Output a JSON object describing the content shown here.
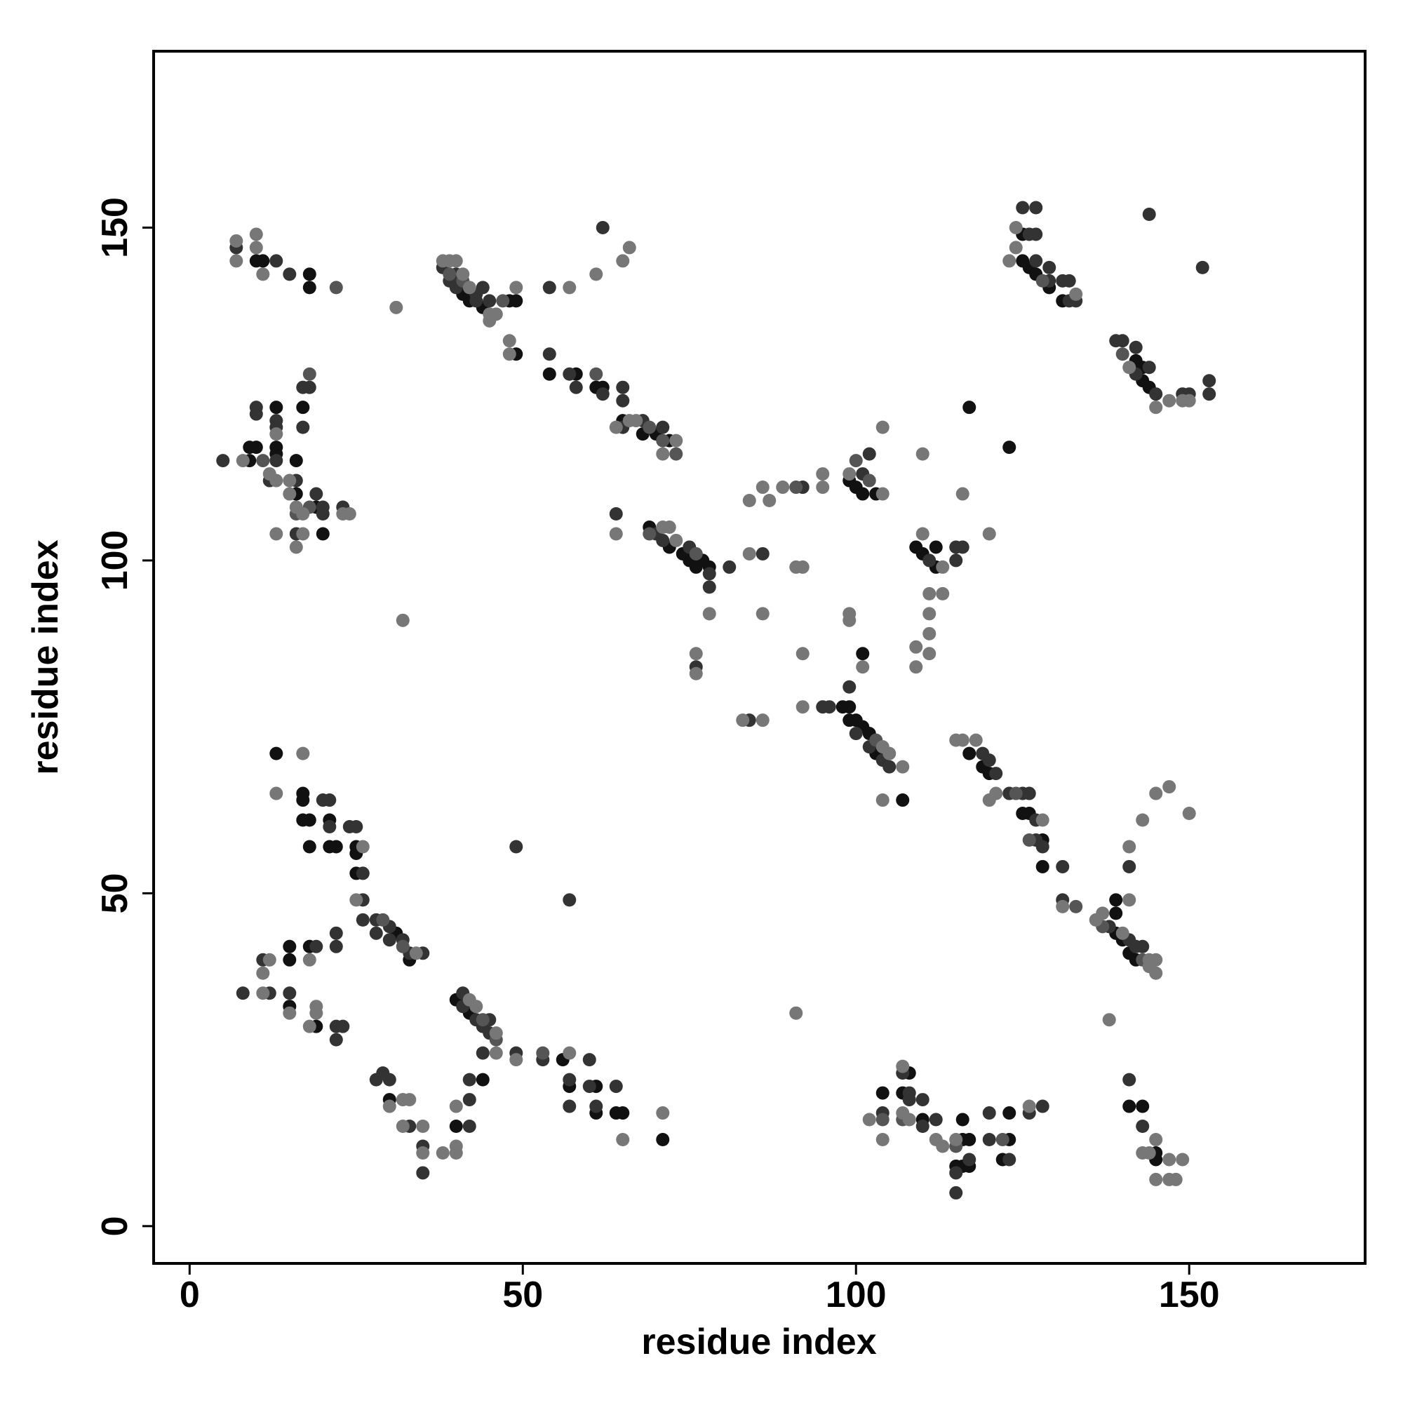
{
  "chart_data": {
    "type": "scatter",
    "xlabel": "residue index",
    "ylabel": "residue index",
    "xlim": [
      -5.4,
      176.4
    ],
    "ylim": [
      -5.6,
      176.5
    ],
    "xticks": [
      0,
      50,
      100,
      150
    ],
    "yticks": [
      0,
      50,
      100,
      150
    ],
    "series": [
      {
        "color": "#111111",
        "x": [
          10,
          11,
          18,
          18,
          9,
          9,
          10,
          13,
          13,
          13,
          16,
          16,
          17,
          19,
          20,
          41,
          42,
          44,
          48,
          49,
          49,
          54,
          58,
          61,
          62,
          65,
          68,
          70,
          72,
          69,
          72,
          74,
          75,
          76,
          77,
          78,
          99,
          100,
          101,
          103,
          117,
          123,
          109,
          110,
          112,
          112,
          101,
          98,
          99,
          99,
          100,
          101,
          102,
          103,
          107,
          117,
          119,
          120,
          125,
          126,
          128,
          128,
          139,
          139,
          139,
          140,
          141,
          142,
          125,
          125,
          126,
          127,
          129,
          131,
          142,
          143,
          143,
          144,
          13,
          17,
          17,
          17,
          18,
          21,
          18,
          21,
          22,
          25,
          25,
          25,
          31,
          33,
          15,
          18,
          15,
          15,
          19,
          40,
          42,
          56,
          57,
          61,
          61,
          64,
          65,
          71,
          30,
          40,
          44,
          104,
          107,
          108,
          110,
          116,
          116,
          117,
          115,
          116,
          117,
          123,
          123,
          122,
          141,
          143,
          145,
          145
        ],
        "y": [
          145,
          145,
          143,
          141,
          117,
          115,
          117,
          123,
          117,
          116,
          115,
          110,
          123,
          108,
          104,
          140,
          139,
          138,
          139,
          139,
          131,
          128,
          128,
          126,
          126,
          121,
          119,
          119,
          118,
          105,
          102,
          101,
          100,
          99,
          100,
          99,
          112,
          111,
          110,
          110,
          123,
          117,
          102,
          101,
          102,
          99,
          86,
          78,
          78,
          76,
          76,
          75,
          74,
          71,
          64,
          71,
          69,
          68,
          62,
          62,
          58,
          54,
          47,
          49,
          44,
          43,
          41,
          40,
          149,
          145,
          144,
          143,
          141,
          139,
          130,
          129,
          127,
          126,
          71,
          65,
          64,
          61,
          61,
          61,
          57,
          57,
          57,
          57,
          56,
          53,
          44,
          40,
          42,
          42,
          40,
          33,
          30,
          34,
          32,
          25,
          21,
          21,
          17,
          17,
          17,
          13,
          19,
          15,
          22,
          20,
          20,
          23,
          16,
          16,
          13,
          13,
          9,
          9,
          9,
          13,
          17,
          10,
          18,
          18,
          11,
          10
        ]
      },
      {
        "color": "#333333",
        "x": [
          7,
          13,
          15,
          5,
          10,
          10,
          12,
          13,
          13,
          13,
          16,
          16,
          18,
          17,
          17,
          19,
          20,
          20,
          23,
          38,
          40,
          40,
          43,
          44,
          45,
          39,
          43,
          54,
          62,
          54,
          57,
          58,
          62,
          65,
          65,
          65,
          68,
          71,
          64,
          70,
          71,
          75,
          78,
          78,
          81,
          76,
          92,
          86,
          95,
          96,
          84,
          101,
          102,
          111,
          115,
          115,
          116,
          99,
          100,
          102,
          104,
          105,
          119,
          120,
          121,
          123,
          125,
          126,
          127,
          127,
          128,
          131,
          131,
          141,
          138,
          141,
          142,
          143,
          125,
          127,
          126,
          127,
          127,
          129,
          129,
          131,
          132,
          132,
          133,
          144,
          152,
          139,
          140,
          142,
          142,
          144,
          145,
          149,
          150,
          153,
          153,
          20,
          21,
          21,
          24,
          25,
          26,
          26,
          26,
          28,
          28,
          30,
          30,
          32,
          33,
          35,
          19,
          22,
          22,
          11,
          8,
          12,
          15,
          22,
          23,
          22,
          49,
          57,
          41,
          41,
          43,
          45,
          45,
          44,
          44,
          49,
          53,
          57,
          57,
          60,
          60,
          61,
          64,
          28,
          29,
          30,
          33,
          35,
          35,
          42,
          42,
          42,
          104,
          107,
          108,
          108,
          110,
          110,
          112,
          117,
          115,
          115,
          120,
          120,
          123,
          126,
          128,
          141,
          143
        ],
        "y": [
          147,
          145,
          143,
          115,
          123,
          122,
          112,
          121,
          120,
          115,
          112,
          104,
          126,
          126,
          120,
          110,
          107,
          108,
          108,
          144,
          143,
          141,
          139,
          141,
          139,
          142,
          140,
          141,
          150,
          131,
          128,
          126,
          125,
          126,
          124,
          120,
          121,
          120,
          107,
          104,
          103,
          102,
          98,
          96,
          99,
          84,
          111,
          101,
          78,
          78,
          76,
          113,
          116,
          100,
          100,
          102,
          102,
          81,
          74,
          72,
          70,
          69,
          71,
          70,
          68,
          65,
          65,
          65,
          61,
          58,
          57,
          54,
          49,
          54,
          45,
          43,
          42,
          42,
          153,
          153,
          149,
          149,
          145,
          144,
          142,
          142,
          142,
          139,
          139,
          152,
          144,
          133,
          133,
          132,
          128,
          129,
          125,
          125,
          125,
          127,
          125,
          64,
          64,
          60,
          60,
          60,
          53,
          49,
          46,
          46,
          44,
          45,
          43,
          43,
          41,
          41,
          42,
          44,
          42,
          40,
          35,
          35,
          35,
          30,
          30,
          28,
          57,
          49,
          35,
          33,
          31,
          31,
          29,
          30,
          26,
          26,
          25,
          22,
          18,
          25,
          21,
          18,
          21,
          22,
          23,
          22,
          15,
          12,
          8,
          15,
          19,
          22,
          17,
          23,
          20,
          19,
          19,
          15,
          16,
          10,
          8,
          5,
          17,
          13,
          10,
          17,
          18,
          22,
          15
        ]
      },
      {
        "color": "#555555",
        "x": [
          22,
          11,
          16,
          18,
          18,
          39,
          41,
          47,
          61,
          69,
          71,
          73,
          69,
          76,
          91,
          100,
          102,
          103,
          124,
          126,
          133,
          137,
          143,
          128,
          140,
          29,
          32,
          44,
          46,
          53,
          104,
          107,
          115,
          122
        ],
        "y": [
          141,
          115,
          107,
          128,
          108,
          143,
          142,
          139,
          128,
          120,
          118,
          116,
          104,
          101,
          111,
          115,
          112,
          73,
          65,
          58,
          48,
          45,
          40,
          142,
          131,
          46,
          42,
          31,
          28,
          26,
          16,
          16,
          12,
          13
        ]
      },
      {
        "color": "#777777",
        "x": [
          7,
          7,
          10,
          10,
          11,
          31,
          8,
          12,
          13,
          13,
          15,
          15,
          16,
          16,
          17,
          17,
          13,
          24,
          23,
          38,
          39,
          40,
          41,
          42,
          45,
          46,
          45,
          49,
          57,
          61,
          65,
          66,
          48,
          48,
          64,
          66,
          67,
          73,
          71,
          64,
          71,
          72,
          73,
          78,
          76,
          76,
          84,
          86,
          87,
          89,
          95,
          95,
          84,
          91,
          92,
          86,
          92,
          92,
          83,
          86,
          32,
          99,
          104,
          104,
          110,
          116,
          120,
          110,
          113,
          111,
          113,
          111,
          111,
          109,
          111,
          109,
          99,
          99,
          101,
          104,
          105,
          107,
          104,
          115,
          116,
          118,
          120,
          121,
          128,
          131,
          147,
          145,
          143,
          150,
          141,
          136,
          137,
          140,
          141,
          144,
          144,
          145,
          145,
          138,
          124,
          124,
          123,
          133,
          141,
          145,
          147,
          150,
          149,
          17,
          13,
          26,
          25,
          34,
          18,
          12,
          11,
          11,
          15,
          19,
          19,
          18,
          91,
          42,
          43,
          46,
          46,
          49,
          57,
          65,
          71,
          30,
          32,
          33,
          32,
          35,
          35,
          38,
          40,
          40,
          40,
          102,
          104,
          107,
          107,
          108,
          112,
          113,
          115,
          126,
          143,
          144,
          145,
          145,
          147,
          147,
          148,
          149
        ],
        "y": [
          148,
          145,
          149,
          147,
          143,
          138,
          115,
          113,
          119,
          112,
          112,
          110,
          108,
          102,
          107,
          104,
          104,
          107,
          107,
          145,
          145,
          145,
          143,
          141,
          137,
          137,
          136,
          141,
          141,
          143,
          145,
          147,
          133,
          131,
          120,
          121,
          121,
          118,
          116,
          104,
          105,
          105,
          103,
          92,
          86,
          83,
          109,
          111,
          109,
          111,
          113,
          111,
          101,
          99,
          99,
          92,
          86,
          78,
          76,
          76,
          91,
          113,
          110,
          120,
          116,
          110,
          104,
          104,
          99,
          95,
          95,
          92,
          89,
          87,
          86,
          84,
          92,
          91,
          84,
          72,
          71,
          69,
          64,
          73,
          73,
          73,
          64,
          65,
          61,
          48,
          66,
          65,
          61,
          62,
          57,
          46,
          47,
          44,
          49,
          39,
          40,
          40,
          38,
          31,
          150,
          147,
          145,
          140,
          129,
          123,
          124,
          124,
          124,
          71,
          65,
          57,
          49,
          41,
          40,
          40,
          38,
          35,
          32,
          33,
          32,
          30,
          32,
          34,
          33,
          29,
          26,
          25,
          26,
          13,
          17,
          18,
          19,
          19,
          15,
          15,
          11,
          11,
          11,
          12,
          18,
          16,
          13,
          24,
          17,
          16,
          13,
          12,
          13,
          18,
          11,
          11,
          13,
          7,
          10,
          7,
          7,
          10
        ]
      }
    ]
  }
}
